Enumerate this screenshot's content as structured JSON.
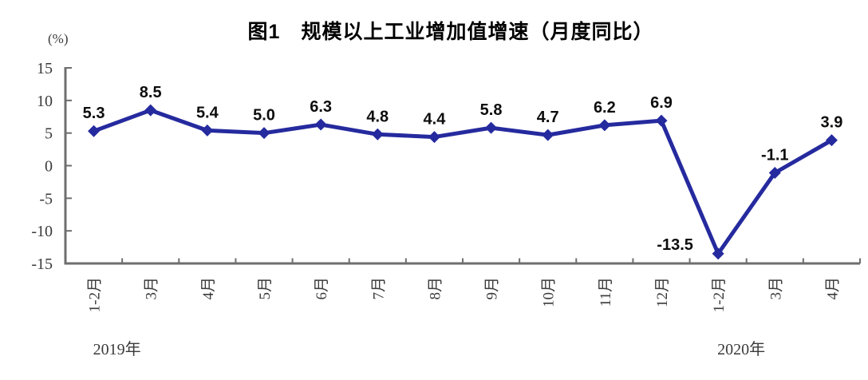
{
  "title": "图1　规模以上工业增加值增速（月度同比）",
  "unit_label": "(%)",
  "chart_data": {
    "type": "line",
    "title": "图1　规模以上工业增加值增速（月度同比）",
    "xlabel": "",
    "ylabel": "(%)",
    "categories": [
      "1-2月",
      "3月",
      "4月",
      "5月",
      "6月",
      "7月",
      "8月",
      "9月",
      "10月",
      "11月",
      "12月",
      "1-2月",
      "3月",
      "4月"
    ],
    "values": [
      5.3,
      8.5,
      5.4,
      5.0,
      6.3,
      4.8,
      4.4,
      5.8,
      4.7,
      6.2,
      6.9,
      -13.5,
      -1.1,
      3.9
    ],
    "point_labels": [
      "5.3",
      "8.5",
      "5.4",
      "5.0",
      "6.3",
      "4.8",
      "4.4",
      "5.8",
      "4.7",
      "6.2",
      "6.9",
      "-13.5",
      "-1.1",
      "3.9"
    ],
    "year_labels": [
      {
        "text": "2019年",
        "category_index": 0
      },
      {
        "text": "2020年",
        "category_index": 11
      }
    ],
    "ylim": [
      -15,
      15
    ],
    "yticks": [
      15,
      10,
      5,
      0,
      -5,
      -10,
      -15
    ],
    "grid": false,
    "legend": "none",
    "line_color": "#252A9E",
    "marker": "diamond",
    "data_label_color": "#0d0d0d",
    "axis_color": "#6e6e6e",
    "tick_label_color": "#3a3a3a",
    "label_offsets": {
      "11": {
        "dx": -54,
        "dy": -5
      }
    }
  }
}
